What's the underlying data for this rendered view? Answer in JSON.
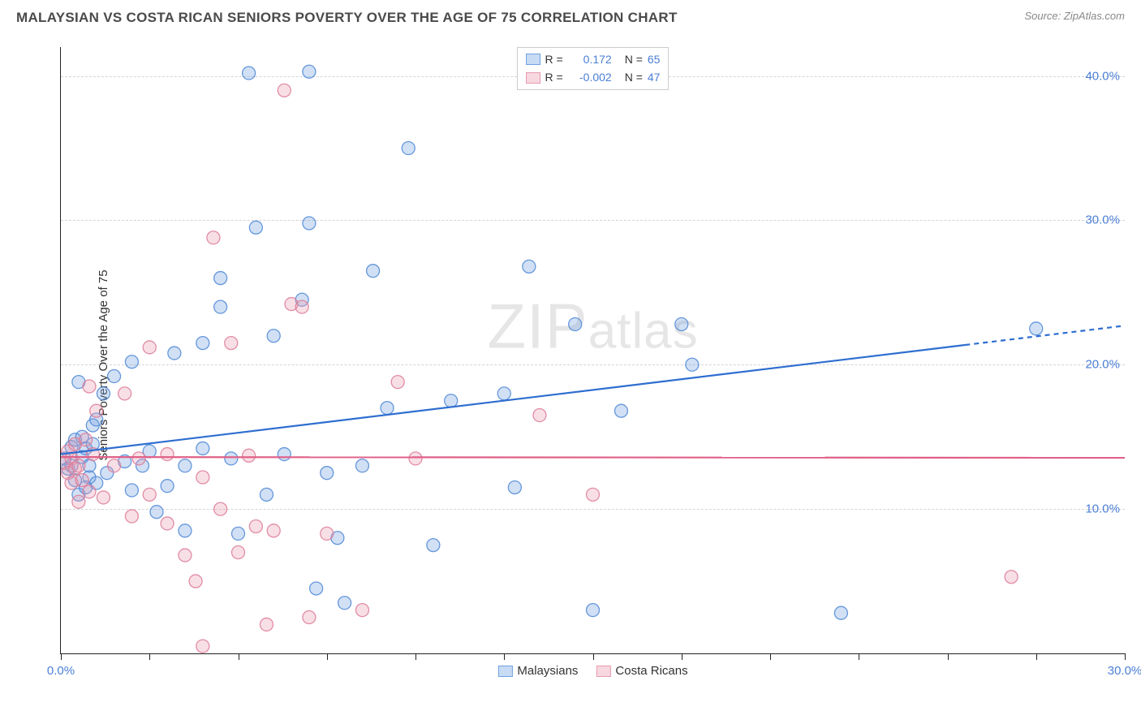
{
  "header": {
    "title": "MALAYSIAN VS COSTA RICAN SENIORS POVERTY OVER THE AGE OF 75 CORRELATION CHART",
    "source_prefix": "Source: ",
    "source_name": "ZipAtlas.com"
  },
  "chart": {
    "type": "scatter",
    "y_axis_label": "Seniors Poverty Over the Age of 75",
    "xlim": [
      0,
      30
    ],
    "ylim": [
      0,
      42
    ],
    "x_ticks": [
      0,
      2.5,
      5,
      7.5,
      10,
      12.5,
      15,
      17.5,
      20,
      22.5,
      25,
      27.5,
      30
    ],
    "x_tick_labels": {
      "0": "0.0%",
      "30": "30.0%"
    },
    "y_ticks": [
      10,
      20,
      30,
      40
    ],
    "y_tick_labels": {
      "10": "10.0%",
      "20": "20.0%",
      "30": "30.0%",
      "40": "40.0%"
    },
    "grid_color": "#d4d4d4",
    "background_color": "#ffffff",
    "axis_color": "#222222",
    "tick_label_color": "#4a7fd6",
    "marker_radius": 8,
    "marker_fill_opacity": 0.32,
    "marker_stroke_opacity": 0.85,
    "marker_stroke_width": 1.3,
    "watermark_text": "ZIPatlas",
    "series": [
      {
        "name": "Malaysians",
        "color": "#6fa0e0",
        "stroke": "#4e87d6",
        "legend_swatch_fill": "#c7dbf4",
        "legend_swatch_stroke": "#6fa0e0",
        "r_value": "0.172",
        "n_value": "65",
        "trend": {
          "x1": 0,
          "y1": 13.8,
          "x2": 30,
          "y2": 22.7,
          "stroke": "#2e6ed0",
          "width": 2.2,
          "dash_from_x": 25.5
        },
        "points": [
          [
            0.1,
            13.5
          ],
          [
            0.2,
            12.8
          ],
          [
            0.3,
            14.3
          ],
          [
            0.3,
            13.0
          ],
          [
            0.4,
            12.0
          ],
          [
            0.4,
            14.8
          ],
          [
            0.5,
            18.8
          ],
          [
            0.5,
            11.0
          ],
          [
            0.6,
            13.6
          ],
          [
            0.6,
            15.0
          ],
          [
            0.7,
            14.2
          ],
          [
            0.7,
            11.5
          ],
          [
            0.8,
            12.2
          ],
          [
            0.8,
            13.0
          ],
          [
            0.9,
            14.5
          ],
          [
            0.9,
            15.8
          ],
          [
            1.0,
            16.2
          ],
          [
            1.0,
            11.8
          ],
          [
            1.2,
            18.0
          ],
          [
            1.3,
            12.5
          ],
          [
            1.5,
            19.2
          ],
          [
            1.8,
            13.3
          ],
          [
            2.0,
            11.3
          ],
          [
            2.0,
            20.2
          ],
          [
            2.3,
            13.0
          ],
          [
            2.5,
            14.0
          ],
          [
            2.7,
            9.8
          ],
          [
            3.0,
            11.6
          ],
          [
            3.2,
            20.8
          ],
          [
            3.5,
            13.0
          ],
          [
            3.5,
            8.5
          ],
          [
            4.0,
            21.5
          ],
          [
            4.0,
            14.2
          ],
          [
            4.5,
            24.0
          ],
          [
            4.5,
            26.0
          ],
          [
            4.8,
            13.5
          ],
          [
            5.0,
            8.3
          ],
          [
            5.3,
            40.2
          ],
          [
            5.5,
            29.5
          ],
          [
            5.8,
            11.0
          ],
          [
            6.0,
            22.0
          ],
          [
            6.3,
            13.8
          ],
          [
            6.8,
            24.5
          ],
          [
            7.0,
            40.3
          ],
          [
            7.0,
            29.8
          ],
          [
            7.2,
            4.5
          ],
          [
            7.5,
            12.5
          ],
          [
            7.8,
            8.0
          ],
          [
            8.0,
            3.5
          ],
          [
            8.5,
            13.0
          ],
          [
            8.8,
            26.5
          ],
          [
            9.2,
            17.0
          ],
          [
            9.8,
            35.0
          ],
          [
            10.5,
            7.5
          ],
          [
            11.0,
            17.5
          ],
          [
            12.5,
            18.0
          ],
          [
            12.8,
            11.5
          ],
          [
            13.2,
            26.8
          ],
          [
            14.5,
            22.8
          ],
          [
            15.0,
            3.0
          ],
          [
            15.8,
            16.8
          ],
          [
            17.5,
            22.8
          ],
          [
            17.8,
            20.0
          ],
          [
            22.0,
            2.8
          ],
          [
            27.5,
            22.5
          ]
        ]
      },
      {
        "name": "Costa Ricans",
        "color": "#e89bb0",
        "stroke": "#dd7a96",
        "legend_swatch_fill": "#f7d7e0",
        "legend_swatch_stroke": "#e89bb0",
        "r_value": "-0.002",
        "n_value": "47",
        "trend": {
          "x1": 0,
          "y1": 13.6,
          "x2": 30,
          "y2": 13.55,
          "stroke": "#e06088",
          "width": 2.2
        },
        "points": [
          [
            0.1,
            13.2
          ],
          [
            0.2,
            12.5
          ],
          [
            0.2,
            14.0
          ],
          [
            0.3,
            13.5
          ],
          [
            0.3,
            11.8
          ],
          [
            0.4,
            12.8
          ],
          [
            0.4,
            14.5
          ],
          [
            0.5,
            13.0
          ],
          [
            0.5,
            10.5
          ],
          [
            0.6,
            12.0
          ],
          [
            0.7,
            14.8
          ],
          [
            0.8,
            18.5
          ],
          [
            0.8,
            11.2
          ],
          [
            0.9,
            13.8
          ],
          [
            1.0,
            16.8
          ],
          [
            1.2,
            10.8
          ],
          [
            1.5,
            13.0
          ],
          [
            1.8,
            18.0
          ],
          [
            2.0,
            9.5
          ],
          [
            2.2,
            13.5
          ],
          [
            2.5,
            11.0
          ],
          [
            2.5,
            21.2
          ],
          [
            3.0,
            13.8
          ],
          [
            3.0,
            9.0
          ],
          [
            3.5,
            6.8
          ],
          [
            3.8,
            5.0
          ],
          [
            4.0,
            12.2
          ],
          [
            4.0,
            0.5
          ],
          [
            4.3,
            28.8
          ],
          [
            4.5,
            10.0
          ],
          [
            4.8,
            21.5
          ],
          [
            5.0,
            7.0
          ],
          [
            5.3,
            13.7
          ],
          [
            5.5,
            8.8
          ],
          [
            5.8,
            2.0
          ],
          [
            6.0,
            8.5
          ],
          [
            6.3,
            39.0
          ],
          [
            6.5,
            24.2
          ],
          [
            6.8,
            24.0
          ],
          [
            7.0,
            2.5
          ],
          [
            7.5,
            8.3
          ],
          [
            8.5,
            3.0
          ],
          [
            9.5,
            18.8
          ],
          [
            10.0,
            13.5
          ],
          [
            13.5,
            16.5
          ],
          [
            15.0,
            11.0
          ],
          [
            26.8,
            5.3
          ]
        ]
      }
    ],
    "legend_bottom": [
      {
        "label": "Malaysians",
        "swatch_fill": "#c7dbf4",
        "swatch_stroke": "#6fa0e0"
      },
      {
        "label": "Costa Ricans",
        "swatch_fill": "#f7d7e0",
        "swatch_stroke": "#e89bb0"
      }
    ]
  }
}
